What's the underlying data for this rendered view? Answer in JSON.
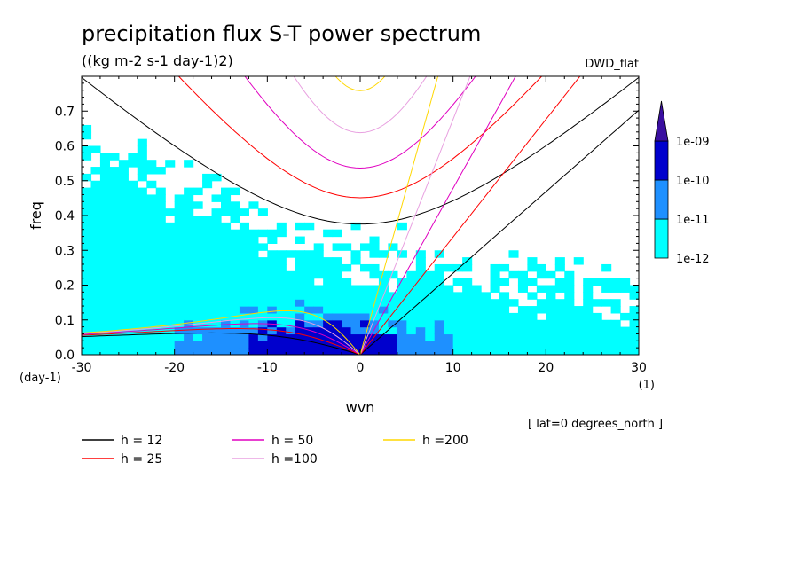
{
  "chart_data": {
    "type": "heatmap",
    "title": "precipitation flux S-T power spectrum",
    "subtitle": "((kg m-2 s-1 day-1)2)",
    "dataset_label": "DWD_flat",
    "xlabel": "wvn",
    "ylabel": "freq",
    "x_unit": "(1)",
    "y_unit": "(day-1)",
    "annotation": "[ lat=0 degrees_north ]",
    "xlim": [
      -30,
      30
    ],
    "ylim": [
      0.0,
      0.8
    ],
    "x_ticks": [
      -30,
      -20,
      -10,
      0,
      10,
      20,
      30
    ],
    "x_tick_labels": [
      "-30",
      "-20",
      "-10",
      "0",
      "10",
      "20",
      "30"
    ],
    "y_ticks": [
      0.0,
      0.1,
      0.2,
      0.3,
      0.4,
      0.5,
      0.6,
      0.7
    ],
    "y_tick_labels": [
      "0.0",
      "0.1",
      "0.2",
      "0.3",
      "0.4",
      "0.5",
      "0.6",
      "0.7"
    ],
    "colorbar": {
      "levels": [
        "1e-12",
        "1e-11",
        "1e-10",
        "1e-09"
      ],
      "colors": [
        "#00ffff",
        "#1e90ff",
        "#0000cd",
        "#3a0fa0"
      ]
    },
    "approx_regions": [
      {
        "level": "1e-12",
        "x_range": [
          -30,
          -3
        ],
        "y_range": [
          0.0,
          0.5
        ]
      },
      {
        "level": "1e-12",
        "x_range": [
          -3,
          30
        ],
        "y_range": [
          0.0,
          0.25
        ]
      },
      {
        "level": "1e-11",
        "x_range": [
          -20,
          10
        ],
        "y_range": [
          0.0,
          0.12
        ]
      },
      {
        "level": "1e-10",
        "x_range": [
          -12,
          5
        ],
        "y_range": [
          0.0,
          0.09
        ]
      }
    ],
    "dispersion_curves": [
      {
        "name": "h = 12",
        "h": 12,
        "color": "#000000"
      },
      {
        "name": "h = 25",
        "h": 25,
        "color": "#ff0000"
      },
      {
        "name": "h = 50",
        "h": 50,
        "color": "#e000c0"
      },
      {
        "name": "h =100",
        "h": 100,
        "color": "#e8a0e0"
      },
      {
        "name": "h =200",
        "h": 200,
        "color": "#ffd700"
      }
    ]
  }
}
